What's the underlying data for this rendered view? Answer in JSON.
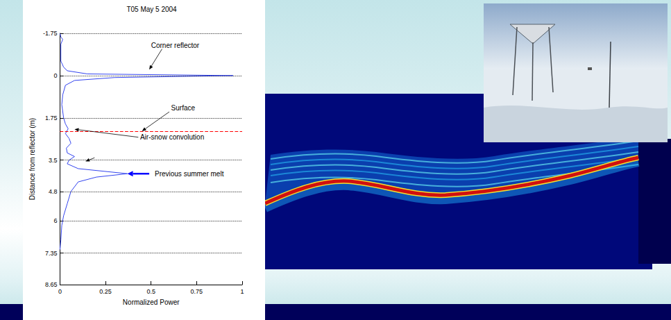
{
  "chart_data": {
    "type": "line",
    "title": "T05 May 5 2004",
    "x_label": "Normalized Power",
    "y_label": "Distance from reflector (m)",
    "x": [
      0,
      0.005,
      0.015,
      0.005,
      0.005,
      0.02,
      0.04,
      0.15,
      0.95,
      0.3,
      0.08,
      0.03,
      0.015,
      0.01,
      0.02,
      0.03,
      0.045,
      0.03,
      0.05,
      0.06,
      0.035,
      0.04,
      0.08,
      0.05,
      0.04,
      0.1,
      0.37,
      0.2,
      0.1,
      0.06,
      0.04,
      0.02,
      0.01,
      0.005,
      0
    ],
    "y": [
      -1.75,
      -1.6,
      -1.5,
      -1.3,
      -0.6,
      -0.35,
      -0.2,
      -0.07,
      0,
      0.08,
      0.2,
      0.4,
      0.8,
      1.2,
      1.75,
      2.0,
      2.2,
      2.4,
      2.6,
      2.8,
      3.0,
      3.2,
      3.35,
      3.5,
      3.65,
      3.85,
      4.06,
      4.2,
      4.4,
      4.8,
      5.3,
      5.8,
      6.2,
      6.8,
      7.2
    ],
    "color": "#3344ee",
    "marker": "none",
    "line_style": "solid",
    "xlim": [
      0,
      1
    ],
    "xticks": [
      0,
      0.25,
      0.5,
      0.75,
      1
    ],
    "ylim": [
      -1.75,
      8.65
    ],
    "yticks": [
      -1.75,
      0,
      1.75,
      3.5,
      4.8,
      6,
      7.35,
      8.65
    ],
    "grid": true,
    "reference_lines": [
      {
        "y": 2.32,
        "color": "#ff0000",
        "line_style": "dashed"
      }
    ],
    "annotations": [
      {
        "text": "Corner reflector",
        "x": 0.5,
        "y": -1.25,
        "color": "#000000",
        "arrows": [
          {
            "from": [
              0.56,
              -1.1
            ],
            "to": [
              0.49,
              -0.25
            ]
          }
        ]
      },
      {
        "text": "Surface",
        "x": 0.61,
        "y": 1.35,
        "color": "#000000",
        "arrows": [
          {
            "from": [
              0.6,
              1.5
            ],
            "to": [
              0.45,
              2.3
            ]
          }
        ]
      },
      {
        "text": "Air-snow convolution",
        "x": 0.44,
        "y": 2.55,
        "color": "#000000",
        "arrows": [
          {
            "from": [
              0.43,
              2.55
            ],
            "to": [
              0.08,
              2.22
            ]
          },
          {
            "from": [
              0.19,
              3.4
            ],
            "to": [
              0.14,
              3.55
            ]
          }
        ]
      },
      {
        "text": "Previous summer melt",
        "x": 0.52,
        "y": 4.06,
        "color": "#0000ff",
        "arrows": [
          {
            "from": [
              0.49,
              4.06
            ],
            "to": [
              0.37,
              4.06
            ]
          }
        ]
      }
    ]
  }
}
